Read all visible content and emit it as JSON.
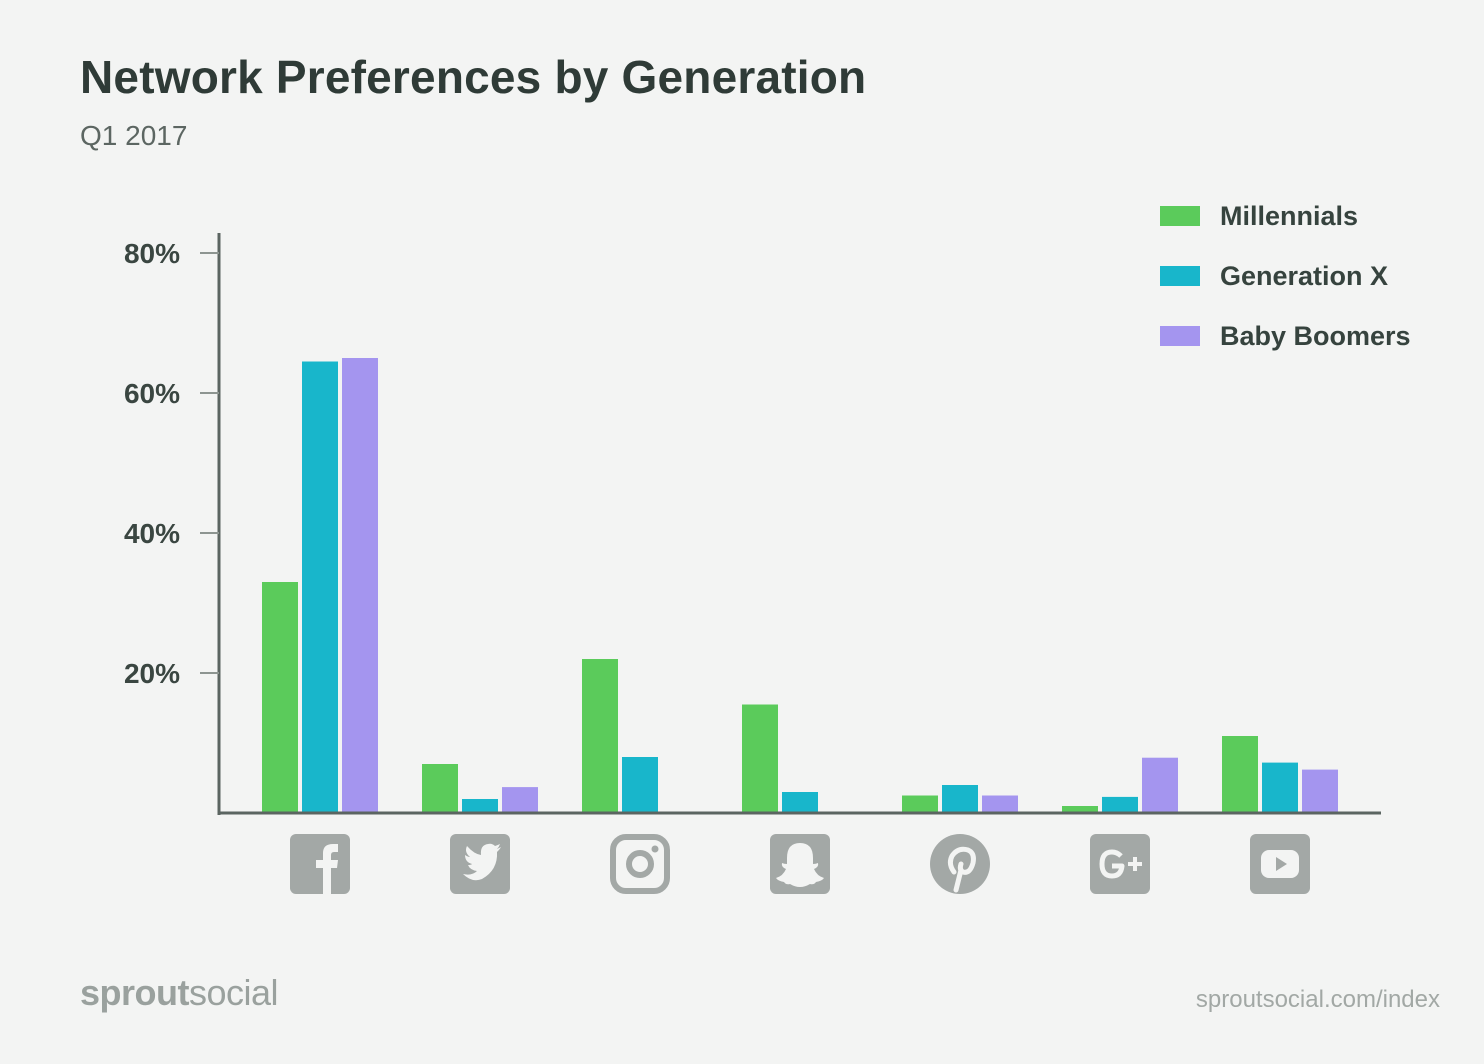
{
  "header": {
    "title": "Network Preferences by Generation",
    "subtitle": "Q1 2017"
  },
  "chart_data": {
    "type": "bar",
    "title": "Network Preferences by Generation",
    "subtitle": "Q1 2017",
    "categories": [
      "Facebook",
      "Twitter",
      "Instagram",
      "Snapchat",
      "Pinterest",
      "Google+",
      "YouTube"
    ],
    "category_icons": [
      "facebook-icon",
      "twitter-icon",
      "instagram-icon",
      "snapchat-icon",
      "pinterest-icon",
      "google-plus-icon",
      "youtube-icon"
    ],
    "series": [
      {
        "name": "Millennials",
        "color": "#5bcb5b",
        "values": [
          33,
          7,
          22,
          15.5,
          2.5,
          1,
          11
        ]
      },
      {
        "name": "Generation X",
        "color": "#18b6cb",
        "values": [
          64.5,
          2,
          8,
          3,
          4,
          2.3,
          7.2
        ]
      },
      {
        "name": "Baby Boomers",
        "color": "#a495ef",
        "values": [
          65,
          3.7,
          0,
          0,
          2.5,
          7.9,
          6.2
        ]
      }
    ],
    "y_ticks": [
      {
        "value": 20,
        "label": "20%"
      },
      {
        "value": 40,
        "label": "40%"
      },
      {
        "value": 60,
        "label": "60%"
      },
      {
        "value": 80,
        "label": "80%"
      }
    ],
    "ylim": [
      0,
      80
    ],
    "xlabel": "",
    "ylabel": "",
    "grid": false,
    "legend_position": "top-right"
  },
  "footer": {
    "brand_bold": "sprout",
    "brand_light": "social",
    "url": "sproutsocial.com/index"
  }
}
